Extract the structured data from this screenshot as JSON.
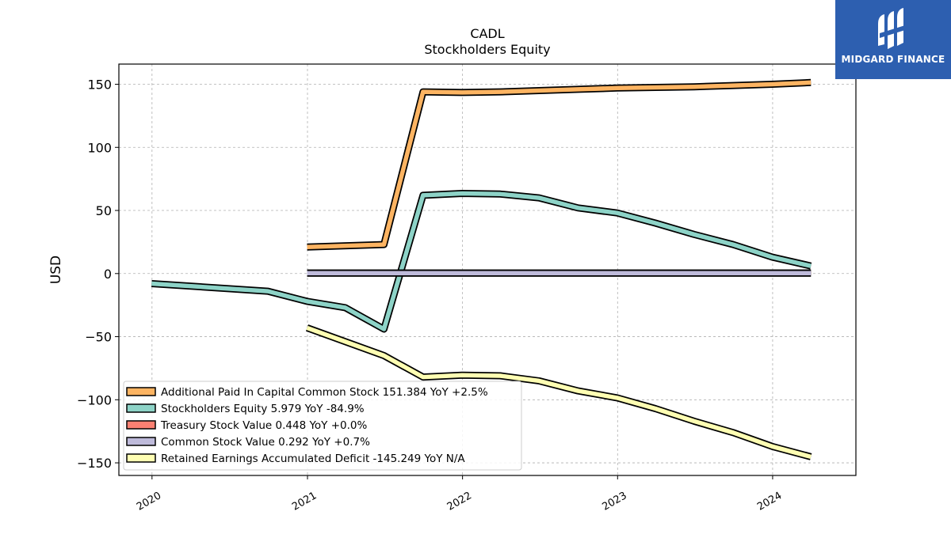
{
  "chart_data": {
    "type": "line",
    "title": "CADL",
    "subtitle": "Stockholders  Equity",
    "xlabel": "",
    "ylabel": "USD",
    "xlim": [
      "2019-10-15",
      "2024-07-15"
    ],
    "ylim": [
      -160,
      166
    ],
    "x_ticks": [
      "2020",
      "2021",
      "2022",
      "2023",
      "2024"
    ],
    "x_tick_dates": [
      "2020-01-01",
      "2021-01-01",
      "2022-01-01",
      "2023-01-01",
      "2024-01-01"
    ],
    "y_ticks": [
      150,
      100,
      50,
      0,
      -50,
      -100,
      -150
    ],
    "y_tick_labels": [
      "150",
      "100",
      "50",
      "0",
      "−50",
      "−100",
      "−150"
    ],
    "grid": true,
    "legend_position": "lower-left",
    "series": [
      {
        "name": "Additional Paid In Capital Common Stock",
        "legend_label": "Additional Paid In Capital Common Stock  151.384 YoY +2.5%",
        "color": "#fdb462",
        "points": [
          [
            "2020-12-31",
            21
          ],
          [
            "2021-06-30",
            23
          ],
          [
            "2021-09-30",
            144
          ],
          [
            "2021-12-31",
            143.5
          ],
          [
            "2022-03-31",
            144
          ],
          [
            "2022-06-30",
            145
          ],
          [
            "2022-09-30",
            146
          ],
          [
            "2022-12-31",
            147
          ],
          [
            "2023-03-31",
            147.5
          ],
          [
            "2023-06-30",
            148
          ],
          [
            "2023-09-30",
            149
          ],
          [
            "2023-12-31",
            150
          ],
          [
            "2024-03-31",
            151.4
          ]
        ]
      },
      {
        "name": "Stockholders Equity",
        "legend_label": "Stockholders Equity  5.979 YoY -84.9%",
        "color": "#8dd3c7",
        "points": [
          [
            "2019-12-31",
            -8
          ],
          [
            "2020-09-30",
            -14
          ],
          [
            "2020-12-31",
            -22
          ],
          [
            "2021-03-31",
            -27
          ],
          [
            "2021-06-30",
            -44
          ],
          [
            "2021-09-30",
            62
          ],
          [
            "2021-12-31",
            63.5
          ],
          [
            "2022-03-31",
            63
          ],
          [
            "2022-06-30",
            60
          ],
          [
            "2022-09-30",
            52
          ],
          [
            "2022-12-31",
            48
          ],
          [
            "2023-03-31",
            40
          ],
          [
            "2023-06-30",
            31
          ],
          [
            "2023-09-30",
            23
          ],
          [
            "2023-12-31",
            13
          ],
          [
            "2024-03-31",
            6
          ]
        ]
      },
      {
        "name": "Treasury Stock Value",
        "legend_label": "Treasury Stock Value  0.448 YoY +0.0%",
        "color": "#fb8072",
        "points": [
          [
            "2020-12-31",
            0.45
          ],
          [
            "2024-03-31",
            0.45
          ]
        ]
      },
      {
        "name": "Common Stock Value",
        "legend_label": "Common Stock Value  0.292 YoY +0.7%",
        "color": "#bebada",
        "points": [
          [
            "2020-12-31",
            0.29
          ],
          [
            "2021-09-30",
            0.29
          ],
          [
            "2024-03-31",
            0.29
          ]
        ]
      },
      {
        "name": "Retained Earnings Accumulated Deficit",
        "legend_label": "Retained Earnings Accumulated Deficit  -145.249 YoY N/A",
        "color": "#ffffb3",
        "points": [
          [
            "2020-12-31",
            -43
          ],
          [
            "2021-06-30",
            -65
          ],
          [
            "2021-09-30",
            -82
          ],
          [
            "2021-12-31",
            -80.5
          ],
          [
            "2022-03-31",
            -81
          ],
          [
            "2022-06-30",
            -85
          ],
          [
            "2022-09-30",
            -93
          ],
          [
            "2022-12-31",
            -98.5
          ],
          [
            "2023-03-31",
            -107
          ],
          [
            "2023-06-30",
            -117
          ],
          [
            "2023-09-30",
            -126
          ],
          [
            "2023-12-31",
            -137
          ],
          [
            "2024-03-31",
            -145.2
          ]
        ]
      }
    ]
  },
  "logo": {
    "text": "MIDGARD FINANCE",
    "color": "#2d5fb0"
  }
}
